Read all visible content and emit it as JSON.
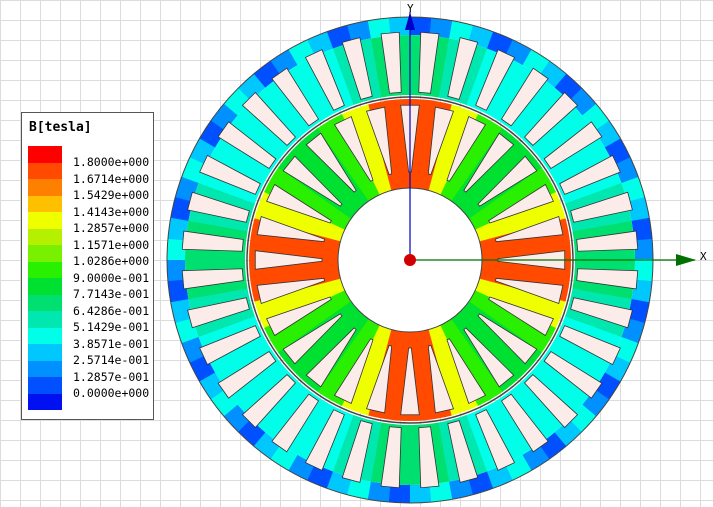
{
  "legend": {
    "title": "B[tesla]",
    "labels": [
      "1.8000e+000",
      "1.6714e+000",
      "1.5429e+000",
      "1.4143e+000",
      "1.2857e+000",
      "1.1571e+000",
      "1.0286e+000",
      "9.0000e-001",
      "7.7143e-001",
      "6.4286e-001",
      "5.1429e-001",
      "3.8571e-001",
      "2.5714e-001",
      "1.2857e-001",
      "0.0000e+000"
    ],
    "colors": [
      "#ff0000",
      "#ff4a00",
      "#ff8000",
      "#ffc000",
      "#f0ff00",
      "#b4f000",
      "#78f000",
      "#28f000",
      "#00e030",
      "#00e070",
      "#00e8b0",
      "#00ffe8",
      "#00c8ff",
      "#0090ff",
      "#0050ff",
      "#0010f0"
    ]
  },
  "axes": {
    "x_label": "X",
    "y_label": "Y",
    "x_color": "#007000",
    "y_color": "#0000c0"
  },
  "machine": {
    "stator_slots": 36,
    "rotor_slots": 28
  }
}
